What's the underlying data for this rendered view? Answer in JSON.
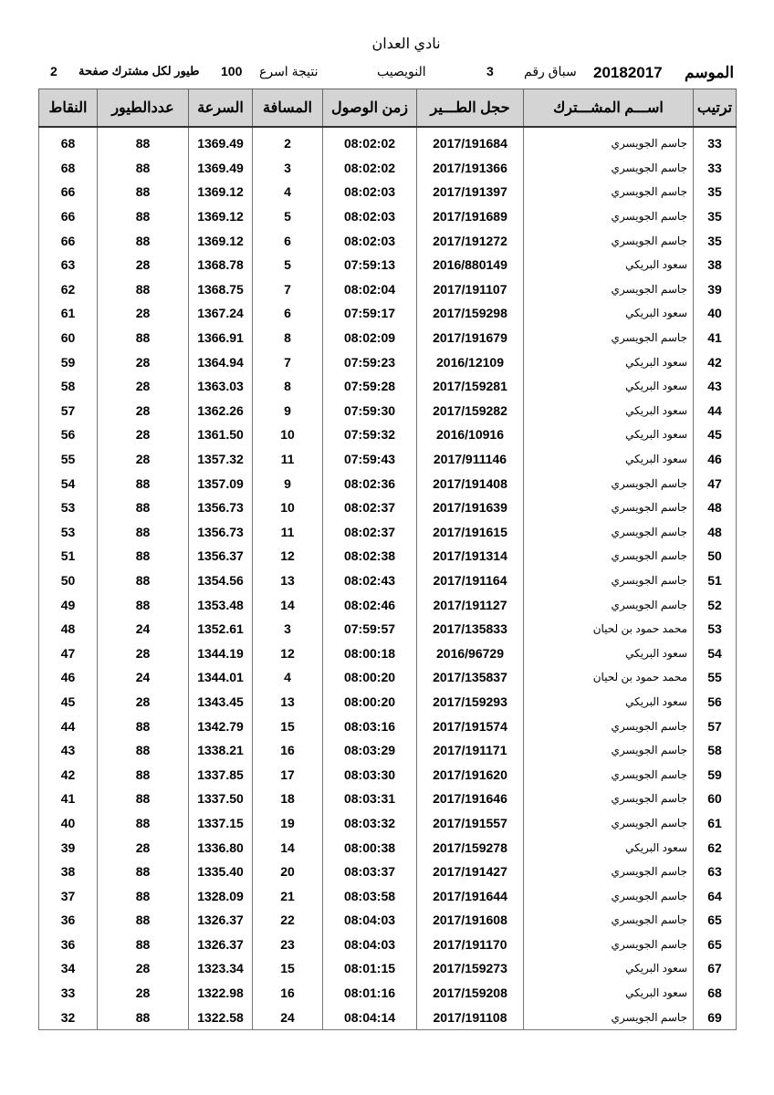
{
  "header": {
    "title": "نادي العدان",
    "info": [
      "الموسم",
      "20182017",
      "سباق رقم",
      "3",
      "النويصيب",
      "نتيجة اسرع",
      "100",
      "طيور لكل مشترك صفحة",
      "2"
    ]
  },
  "table": {
    "columns": [
      "ترتيب",
      "اســـم المشـــترك",
      "حجل الطـــير",
      "زمن الوصول",
      "المسافة",
      "السرعة",
      "عددالطيور",
      "النقاط"
    ],
    "rows": [
      [
        "33",
        "جاسم الجويسري",
        "2017/191684",
        "08:02:02",
        "2",
        "1369.49",
        "88",
        "68"
      ],
      [
        "33",
        "جاسم الجويسري",
        "2017/191366",
        "08:02:02",
        "3",
        "1369.49",
        "88",
        "68"
      ],
      [
        "35",
        "جاسم الجويسري",
        "2017/191397",
        "08:02:03",
        "4",
        "1369.12",
        "88",
        "66"
      ],
      [
        "35",
        "جاسم الجويسري",
        "2017/191689",
        "08:02:03",
        "5",
        "1369.12",
        "88",
        "66"
      ],
      [
        "35",
        "جاسم الجويسري",
        "2017/191272",
        "08:02:03",
        "6",
        "1369.12",
        "88",
        "66"
      ],
      [
        "38",
        "سعود البريكي",
        "2016/880149",
        "07:59:13",
        "5",
        "1368.78",
        "28",
        "63"
      ],
      [
        "39",
        "جاسم الجويسري",
        "2017/191107",
        "08:02:04",
        "7",
        "1368.75",
        "88",
        "62"
      ],
      [
        "40",
        "سعود البريكي",
        "2017/159298",
        "07:59:17",
        "6",
        "1367.24",
        "28",
        "61"
      ],
      [
        "41",
        "جاسم الجويسري",
        "2017/191679",
        "08:02:09",
        "8",
        "1366.91",
        "88",
        "60"
      ],
      [
        "42",
        "سعود البريكي",
        "2016/12109",
        "07:59:23",
        "7",
        "1364.94",
        "28",
        "59"
      ],
      [
        "43",
        "سعود البريكي",
        "2017/159281",
        "07:59:28",
        "8",
        "1363.03",
        "28",
        "58"
      ],
      [
        "44",
        "سعود البريكي",
        "2017/159282",
        "07:59:30",
        "9",
        "1362.26",
        "28",
        "57"
      ],
      [
        "45",
        "سعود البريكي",
        "2016/10916",
        "07:59:32",
        "10",
        "1361.50",
        "28",
        "56"
      ],
      [
        "46",
        "سعود البريكي",
        "2017/911146",
        "07:59:43",
        "11",
        "1357.32",
        "28",
        "55"
      ],
      [
        "47",
        "جاسم الجويسري",
        "2017/191408",
        "08:02:36",
        "9",
        "1357.09",
        "88",
        "54"
      ],
      [
        "48",
        "جاسم الجويسري",
        "2017/191639",
        "08:02:37",
        "10",
        "1356.73",
        "88",
        "53"
      ],
      [
        "48",
        "جاسم الجويسري",
        "2017/191615",
        "08:02:37",
        "11",
        "1356.73",
        "88",
        "53"
      ],
      [
        "50",
        "جاسم الجويسري",
        "2017/191314",
        "08:02:38",
        "12",
        "1356.37",
        "88",
        "51"
      ],
      [
        "51",
        "جاسم الجويسري",
        "2017/191164",
        "08:02:43",
        "13",
        "1354.56",
        "88",
        "50"
      ],
      [
        "52",
        "جاسم الجويسري",
        "2017/191127",
        "08:02:46",
        "14",
        "1353.48",
        "88",
        "49"
      ],
      [
        "53",
        "محمد حمود بن لحيان",
        "2017/135833",
        "07:59:57",
        "3",
        "1352.61",
        "24",
        "48"
      ],
      [
        "54",
        "سعود البريكي",
        "2016/96729",
        "08:00:18",
        "12",
        "1344.19",
        "28",
        "47"
      ],
      [
        "55",
        "محمد حمود بن لحيان",
        "2017/135837",
        "08:00:20",
        "4",
        "1344.01",
        "24",
        "46"
      ],
      [
        "56",
        "سعود البريكي",
        "2017/159293",
        "08:00:20",
        "13",
        "1343.45",
        "28",
        "45"
      ],
      [
        "57",
        "جاسم الجويسري",
        "2017/191574",
        "08:03:16",
        "15",
        "1342.79",
        "88",
        "44"
      ],
      [
        "58",
        "جاسم الجويسري",
        "2017/191171",
        "08:03:29",
        "16",
        "1338.21",
        "88",
        "43"
      ],
      [
        "59",
        "جاسم الجويسري",
        "2017/191620",
        "08:03:30",
        "17",
        "1337.85",
        "88",
        "42"
      ],
      [
        "60",
        "جاسم الجويسري",
        "2017/191646",
        "08:03:31",
        "18",
        "1337.50",
        "88",
        "41"
      ],
      [
        "61",
        "جاسم الجويسري",
        "2017/191557",
        "08:03:32",
        "19",
        "1337.15",
        "88",
        "40"
      ],
      [
        "62",
        "سعود البريكي",
        "2017/159278",
        "08:00:38",
        "14",
        "1336.80",
        "28",
        "39"
      ],
      [
        "63",
        "جاسم الجويسري",
        "2017/191427",
        "08:03:37",
        "20",
        "1335.40",
        "88",
        "38"
      ],
      [
        "64",
        "جاسم الجويسري",
        "2017/191644",
        "08:03:58",
        "21",
        "1328.09",
        "88",
        "37"
      ],
      [
        "65",
        "جاسم الجويسري",
        "2017/191608",
        "08:04:03",
        "22",
        "1326.37",
        "88",
        "36"
      ],
      [
        "65",
        "جاسم الجويسري",
        "2017/191170",
        "08:04:03",
        "23",
        "1326.37",
        "88",
        "36"
      ],
      [
        "67",
        "سعود البريكي",
        "2017/159273",
        "08:01:15",
        "15",
        "1323.34",
        "28",
        "34"
      ],
      [
        "68",
        "سعود البريكي",
        "2017/159208",
        "08:01:16",
        "16",
        "1322.98",
        "28",
        "33"
      ],
      [
        "69",
        "جاسم الجويسري",
        "2017/191108",
        "08:04:14",
        "24",
        "1322.58",
        "88",
        "32"
      ]
    ]
  }
}
